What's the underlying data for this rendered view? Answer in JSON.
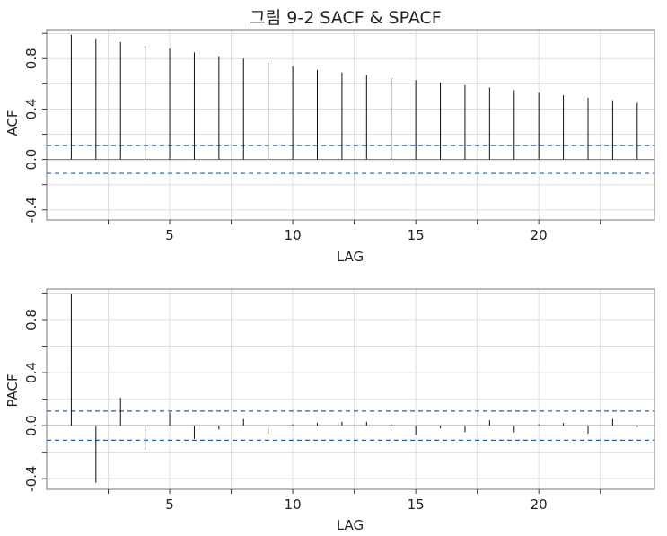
{
  "title": "그림 9-2 SACF & SPACF",
  "style": {
    "bar_color": "#111111",
    "ci_color": "#1f5fbf",
    "grid_color": "#dddddd",
    "zero_color": "#888888"
  },
  "chart_data": [
    {
      "type": "bar",
      "ylabel": "ACF",
      "xlabel": "LAG",
      "xlim": [
        0,
        24.7
      ],
      "ylim": [
        -0.48,
        1.03
      ],
      "xticks": [
        5,
        10,
        15,
        20
      ],
      "yticks": [
        -0.4,
        0.0,
        0.4,
        0.8
      ],
      "grid": true,
      "ci": 0.11,
      "x": [
        1,
        2,
        3,
        4,
        5,
        6,
        7,
        8,
        9,
        10,
        11,
        12,
        13,
        14,
        15,
        16,
        17,
        18,
        19,
        20,
        21,
        22,
        23,
        24
      ],
      "values": [
        0.99,
        0.96,
        0.93,
        0.9,
        0.88,
        0.85,
        0.82,
        0.8,
        0.77,
        0.74,
        0.71,
        0.69,
        0.67,
        0.65,
        0.63,
        0.61,
        0.59,
        0.57,
        0.55,
        0.53,
        0.51,
        0.49,
        0.47,
        0.45
      ]
    },
    {
      "type": "bar",
      "ylabel": "PACF",
      "xlabel": "LAG",
      "xlim": [
        0,
        24.7
      ],
      "ylim": [
        -0.48,
        1.03
      ],
      "xticks": [
        5,
        10,
        15,
        20
      ],
      "yticks": [
        -0.4,
        0.0,
        0.4,
        0.8
      ],
      "grid": true,
      "ci": 0.11,
      "x": [
        1,
        2,
        3,
        4,
        5,
        6,
        7,
        8,
        9,
        10,
        11,
        12,
        13,
        14,
        15,
        16,
        17,
        18,
        19,
        20,
        21,
        22,
        23,
        24
      ],
      "values": [
        0.99,
        -0.43,
        0.21,
        -0.18,
        0.1,
        -0.1,
        -0.03,
        0.05,
        -0.06,
        0.01,
        0.02,
        0.03,
        0.03,
        0.01,
        -0.07,
        -0.02,
        -0.05,
        0.04,
        -0.05,
        0.01,
        0.02,
        -0.06,
        0.05,
        -0.01
      ]
    }
  ]
}
